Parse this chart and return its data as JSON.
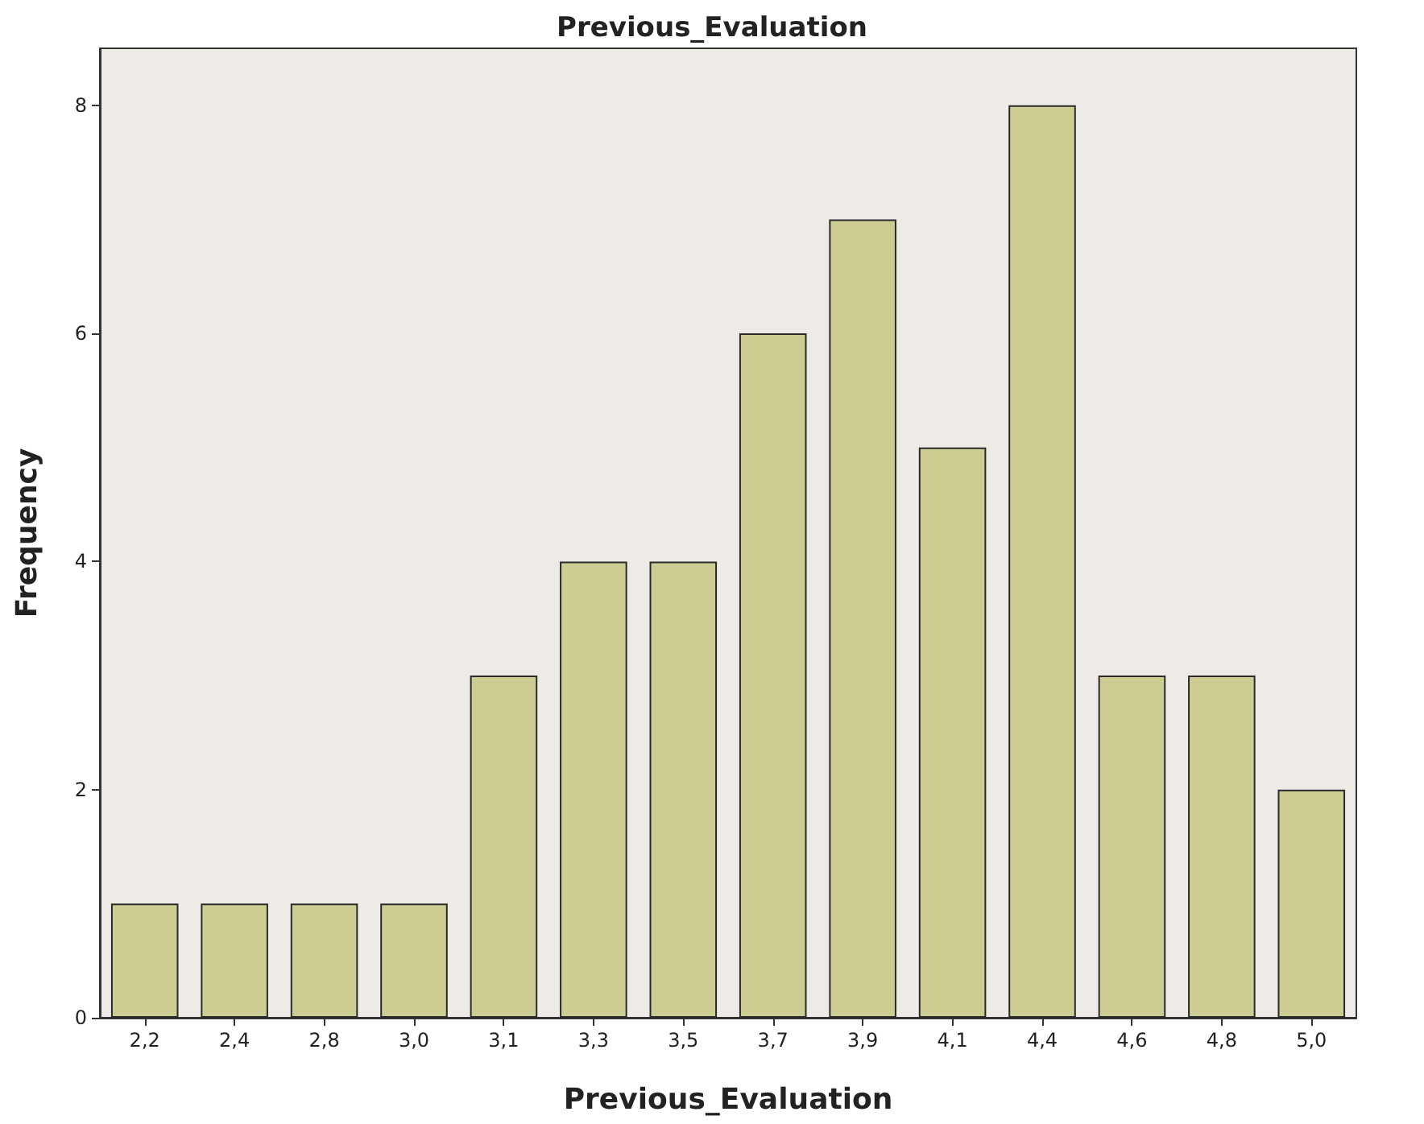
{
  "chart_data": {
    "type": "bar",
    "title": "Previous_Evaluation",
    "xlabel": "Previous_Evaluation",
    "ylabel": "Frequency",
    "categories": [
      "2,2",
      "2,4",
      "2,8",
      "3,0",
      "3,1",
      "3,3",
      "3,5",
      "3,7",
      "3,9",
      "4,1",
      "4,4",
      "4,6",
      "4,8",
      "5,0"
    ],
    "values": [
      1,
      1,
      1,
      1,
      3,
      4,
      4,
      6,
      7,
      5,
      8,
      3,
      3,
      2
    ],
    "color": "#cdcc92",
    "ylim": [
      0,
      8.5
    ],
    "yticks": [
      0,
      2,
      4,
      6,
      8
    ],
    "grid": false
  }
}
